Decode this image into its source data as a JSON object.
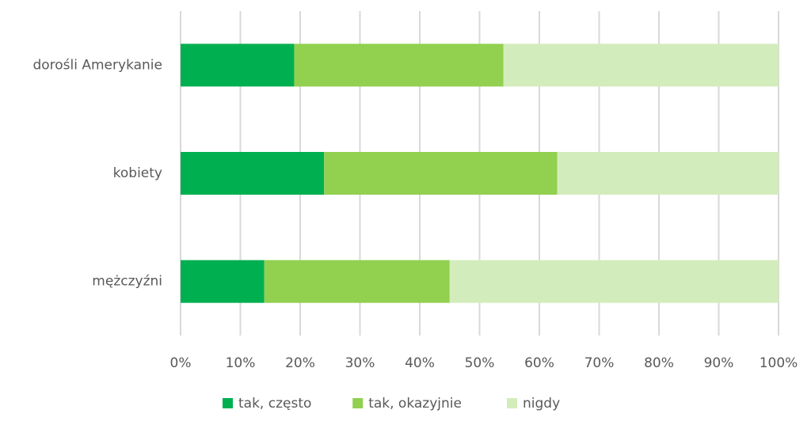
{
  "chart_data": {
    "type": "bar",
    "orientation": "horizontal",
    "stacked": true,
    "categories": [
      "dorośli Amerykanie",
      "kobiety",
      "mężczyźni"
    ],
    "series": [
      {
        "name": "tak, często",
        "color": "#00b050",
        "values": [
          19,
          24,
          14
        ]
      },
      {
        "name": "tak, okazyjnie",
        "color": "#92d050",
        "values": [
          35,
          39,
          31
        ]
      },
      {
        "name": "nigdy",
        "color": "#d3ecbc",
        "values": [
          46,
          37,
          55
        ]
      }
    ],
    "xlim": [
      0,
      100
    ],
    "xticks": [
      {
        "value": 0,
        "label": "0%"
      },
      {
        "value": 10,
        "label": "10%"
      },
      {
        "value": 20,
        "label": "20%"
      },
      {
        "value": 30,
        "label": "30%"
      },
      {
        "value": 40,
        "label": "40%"
      },
      {
        "value": 50,
        "label": "50%"
      },
      {
        "value": 60,
        "label": "60%"
      },
      {
        "value": 70,
        "label": "70%"
      },
      {
        "value": 80,
        "label": "80%"
      },
      {
        "value": 90,
        "label": "90%"
      },
      {
        "value": 100,
        "label": "100%"
      }
    ],
    "grid": true,
    "legend": "bottom"
  }
}
